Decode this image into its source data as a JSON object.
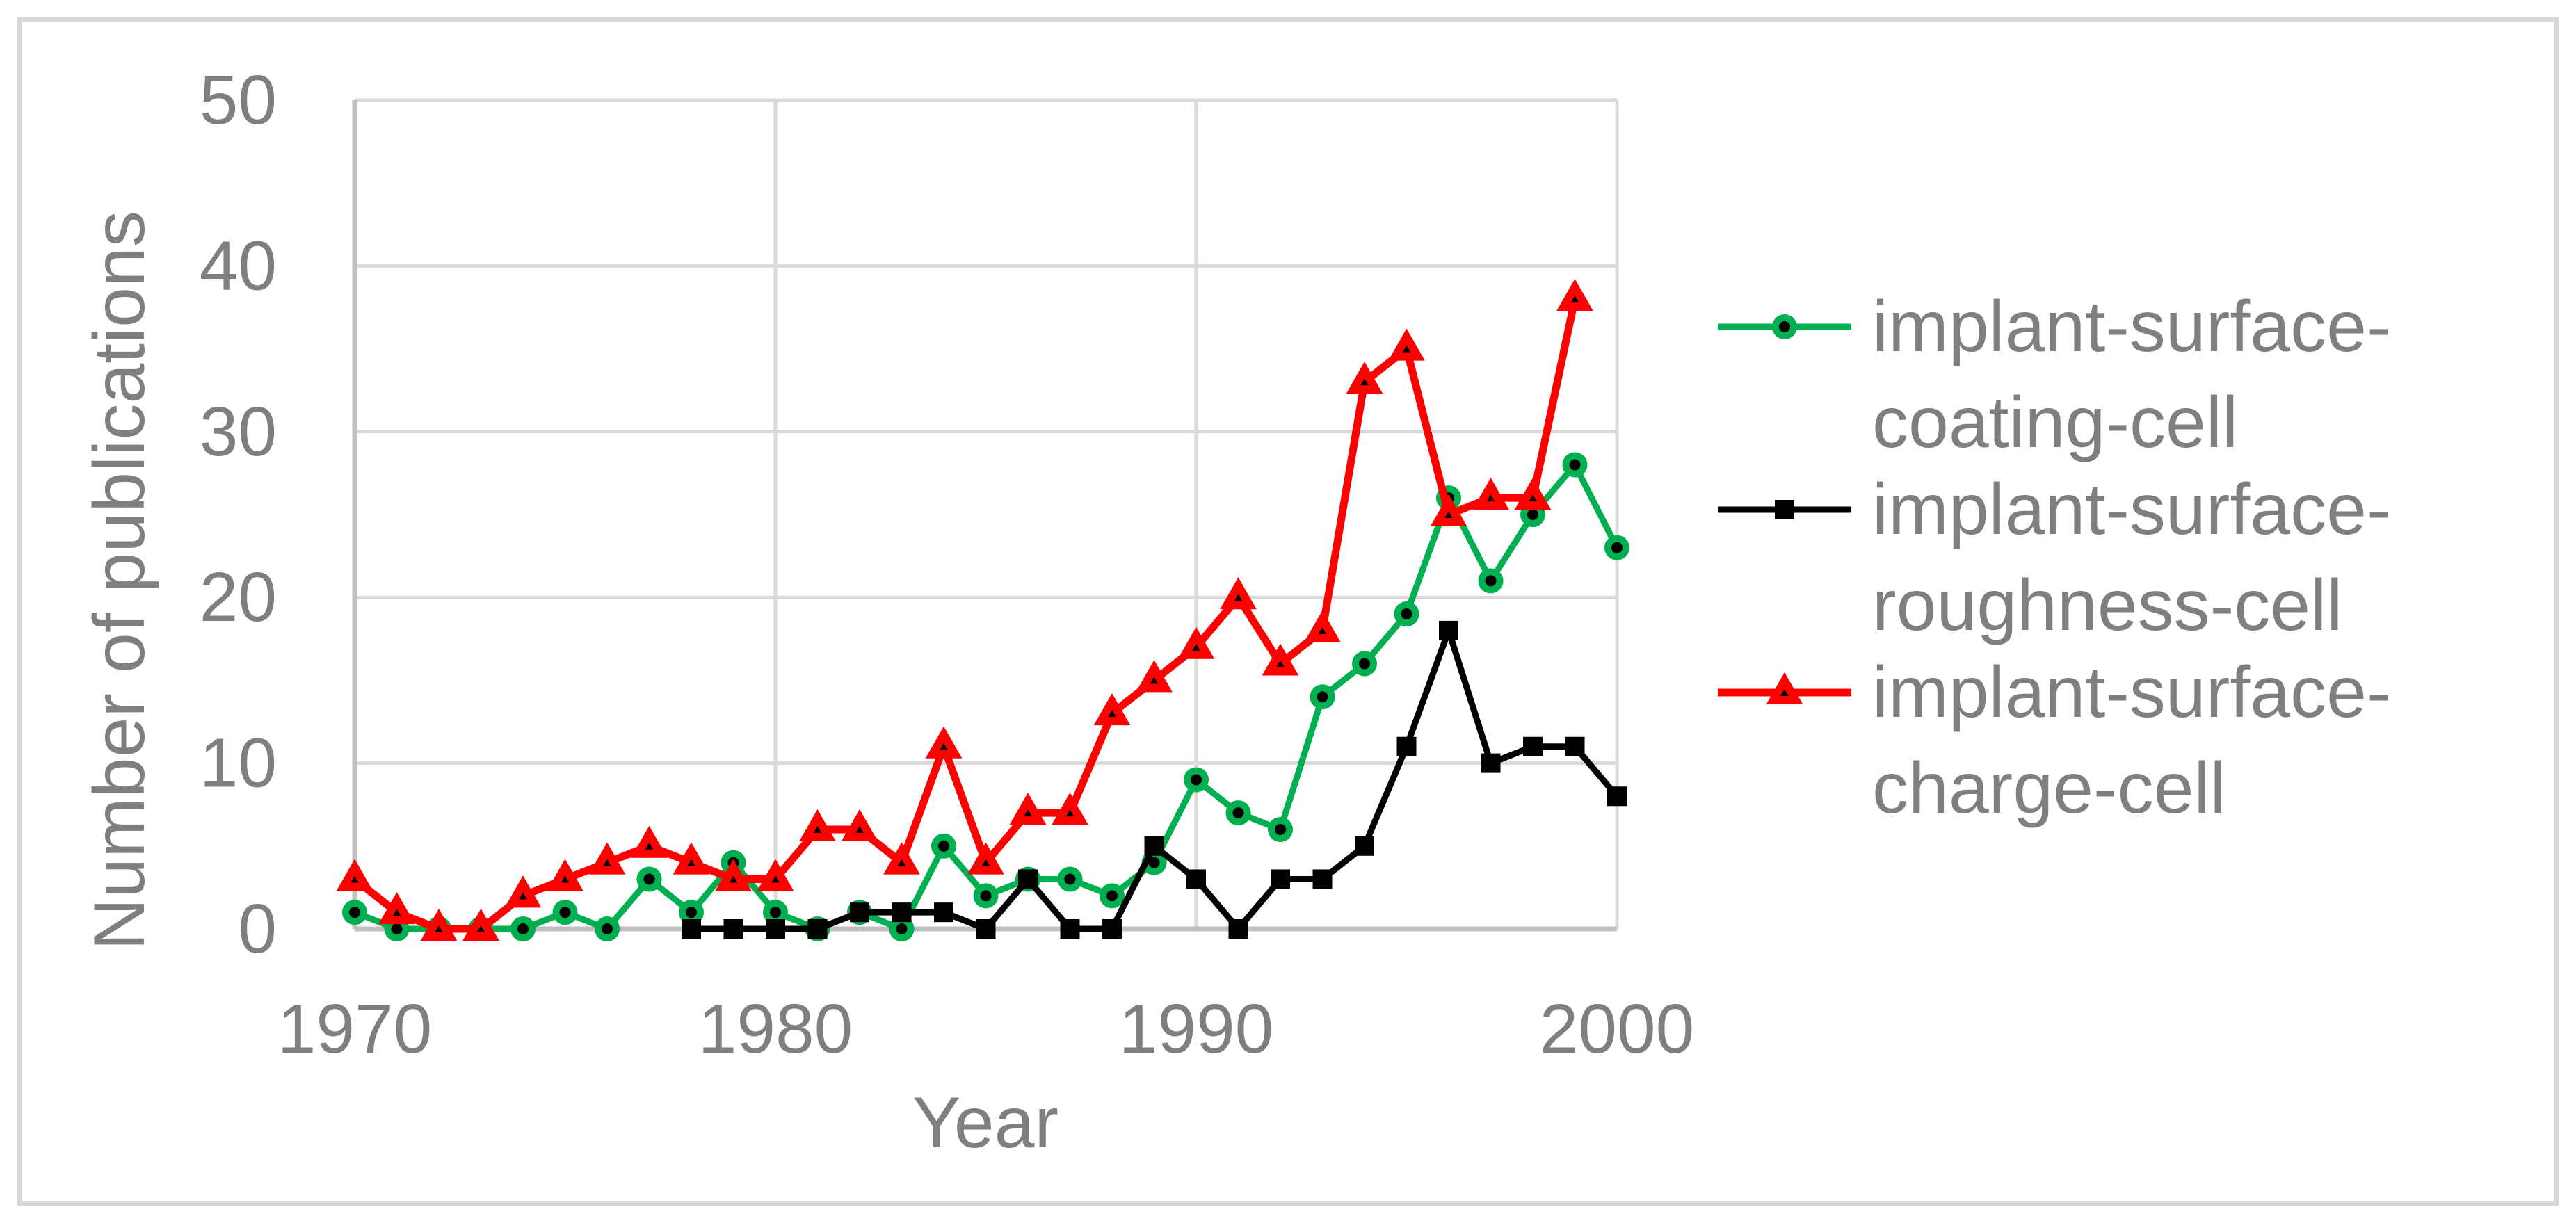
{
  "figure": {
    "background_color": "#FFFFFF",
    "border_color": "#D9D9D9",
    "text_color": "#7F7F7F",
    "gridline_color": "#D9D9D9",
    "axisline_color": "#BFBFBF"
  },
  "chart_data": {
    "type": "line",
    "title": "",
    "xlabel": "Year",
    "ylabel": "Number of publications",
    "xlim": [
      1970,
      2000
    ],
    "ylim": [
      0,
      50
    ],
    "grid": true,
    "legend_position": "right",
    "x_tick_values": [
      1970,
      1980,
      1990,
      2000
    ],
    "x_tick_labels": [
      "1970",
      "1980",
      "1990",
      "2000"
    ],
    "y_tick_values": [
      0,
      10,
      20,
      30,
      40,
      50
    ],
    "y_tick_labels": [
      "0",
      "10",
      "20",
      "30",
      "40",
      "50"
    ],
    "series": [
      {
        "name": "implant-surface-coating-cell",
        "legend_lines": [
          "implant-surface-",
          "coating-cell"
        ],
        "color": "#00B050",
        "marker": "circle",
        "marker_fill": "#000000",
        "start_year": 1970,
        "values": [
          1,
          0,
          0,
          0,
          0,
          1,
          0,
          3,
          1,
          4,
          1,
          0,
          1,
          0,
          5,
          2,
          3,
          3,
          2,
          4,
          9,
          7,
          6,
          14,
          16,
          19,
          26,
          21,
          25,
          28,
          23
        ]
      },
      {
        "name": "implant-surface-roughness-cell",
        "legend_lines": [
          "implant-surface-",
          "roughness-cell"
        ],
        "color": "#000000",
        "marker": "square",
        "marker_fill": "#000000",
        "start_year": 1978,
        "values": [
          0,
          0,
          0,
          0,
          1,
          1,
          1,
          0,
          3,
          0,
          0,
          5,
          3,
          0,
          3,
          3,
          5,
          11,
          18,
          10,
          11,
          11,
          8
        ]
      },
      {
        "name": "implant-surface-charge-cell",
        "legend_lines": [
          "implant-surface-",
          "charge-cell"
        ],
        "color": "#FF0000",
        "marker": "triangle",
        "marker_fill": "#000000",
        "start_year": 1970,
        "values": [
          3,
          1,
          0,
          0,
          2,
          3,
          4,
          5,
          4,
          3,
          3,
          6,
          6,
          4,
          11,
          4,
          7,
          7,
          13,
          15,
          17,
          20,
          16,
          18,
          33,
          35,
          25,
          26,
          26,
          38
        ]
      }
    ]
  }
}
